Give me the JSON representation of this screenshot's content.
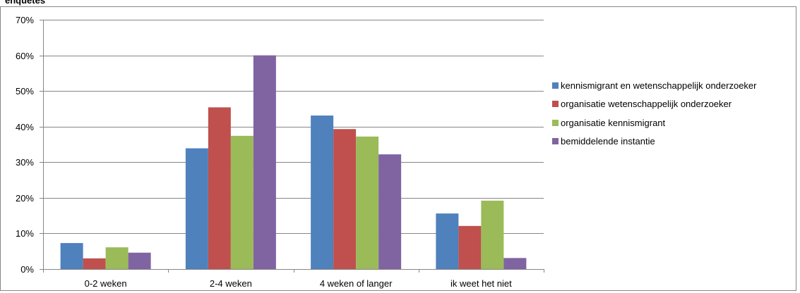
{
  "chart_data": {
    "type": "bar",
    "title": "enquêtes",
    "xlabel": "",
    "ylabel": "",
    "categories": [
      "0-2 weken",
      "2-4 weken",
      "4 weken of langer",
      "ik weet het niet"
    ],
    "y_ticks": [
      "0%",
      "10%",
      "20%",
      "30%",
      "40%",
      "50%",
      "60%",
      "70%"
    ],
    "ylim": [
      0,
      70
    ],
    "grid": true,
    "legend_position": "right",
    "series": [
      {
        "name": "kennismigrant en wetenschappelijk onderzoeker",
        "color": "#4F81BD",
        "values": [
          7.3,
          33.9,
          43.1,
          15.6
        ]
      },
      {
        "name": "organisatie wetenschappelijk onderzoeker",
        "color": "#C0504D",
        "values": [
          3.0,
          45.4,
          39.3,
          12.1
        ]
      },
      {
        "name": "organisatie kennismigrant",
        "color": "#9BBB59",
        "values": [
          6.1,
          37.4,
          37.2,
          19.2
        ]
      },
      {
        "name": "bemiddelende instantie",
        "color": "#8064A2",
        "values": [
          4.6,
          60.0,
          32.2,
          3.1
        ]
      }
    ]
  }
}
